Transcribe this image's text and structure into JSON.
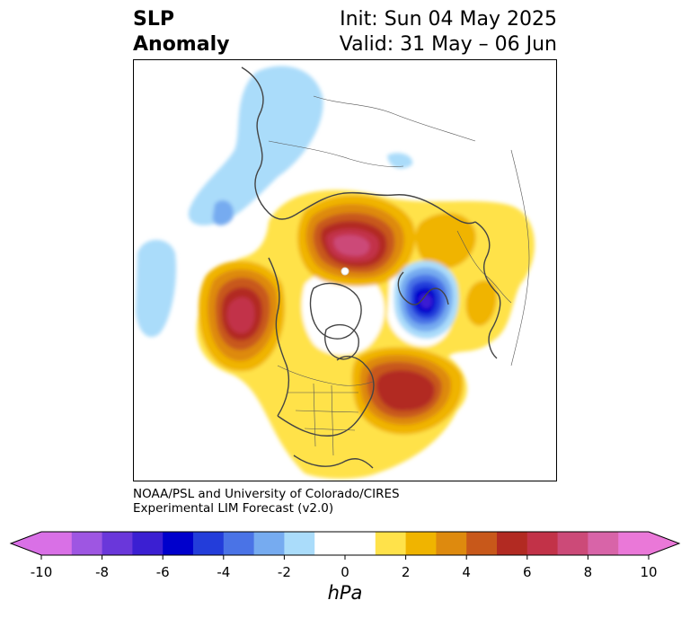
{
  "title": {
    "left_line1": "SLP",
    "left_line2": "Anomaly",
    "init": "Init: Sun 04 May 2025",
    "valid": "Valid: 31 May – 06 Jun"
  },
  "credit": {
    "line1": "NOAA/PSL and University of Colorado/CIRES",
    "line2": "Experimental LIM Forecast (v2.0)"
  },
  "colorbar": {
    "units": "hPa",
    "min": -10,
    "max": 10,
    "levels": [
      -10,
      -9,
      -8,
      -7,
      -6,
      -5,
      -4,
      -3,
      -2,
      -1,
      1,
      2,
      3,
      4,
      5,
      6,
      7,
      8,
      9,
      10
    ],
    "colors": [
      "#d970e6",
      "#9e56e2",
      "#6a37da",
      "#3b1fd2",
      "#0000cc",
      "#233dda",
      "#4a73e6",
      "#76abf0",
      "#aadcfa",
      "#ffffff",
      "#ffe24a",
      "#f0b400",
      "#de8a0e",
      "#c8581a",
      "#b22a22",
      "#c23248",
      "#cc4a78",
      "#d864a8",
      "#ea78d8"
    ],
    "ticks": [
      -10,
      -8,
      -6,
      -4,
      -2,
      0,
      2,
      4,
      6,
      8,
      10
    ],
    "tick_labels": [
      "-10",
      "-8",
      "-6",
      "-4",
      "-2",
      "0",
      "2",
      "4",
      "6",
      "8",
      "10"
    ],
    "extend": "both"
  },
  "map": {
    "projection": "polar-stereographic north",
    "centers": [
      {
        "name": "arctic-high",
        "sign": "positive",
        "peak": 7
      },
      {
        "name": "north-pacific-high",
        "sign": "positive",
        "peak": 7
      },
      {
        "name": "north-atlantic-high",
        "sign": "positive",
        "peak": 6
      },
      {
        "name": "siberia-high",
        "sign": "positive",
        "peak": 2
      },
      {
        "name": "north-america-high",
        "sign": "positive",
        "peak": 1
      },
      {
        "name": "europe-low",
        "sign": "negative",
        "peak": -6
      },
      {
        "name": "east-asia-low",
        "sign": "negative",
        "peak": -2
      },
      {
        "name": "pacific-low",
        "sign": "negative",
        "peak": -2
      },
      {
        "name": "hudson-low",
        "sign": "negative",
        "peak": -2
      }
    ]
  }
}
